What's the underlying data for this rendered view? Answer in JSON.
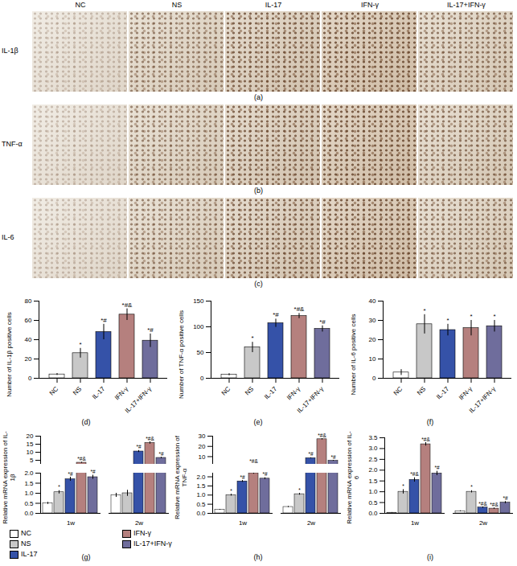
{
  "micrographs": {
    "columns": [
      "NC",
      "NS",
      "IL-17",
      "IFN-γ",
      "IL-17+IFN-γ"
    ],
    "rows": [
      {
        "label": "IL-1β",
        "panel": "(a)"
      },
      {
        "label": "TNF-α",
        "panel": "(b)"
      },
      {
        "label": "IL-6",
        "panel": "(c)"
      }
    ]
  },
  "chart_data": [
    {
      "type": "bar",
      "title": "(d)",
      "y_label": "Number of IL-1β positive cells",
      "categories": [
        "NC",
        "NS",
        "IL-17",
        "IFN-γ",
        "IL-17+IFN-γ"
      ],
      "values": [
        4,
        26,
        48,
        66,
        39
      ],
      "errors": [
        1,
        5,
        8,
        6,
        7
      ],
      "significance": [
        null,
        "*",
        "*#",
        "*#&",
        "*#"
      ],
      "colors": [
        "#ffffff",
        "#c8c8c8",
        "#3552a8",
        "#b5807e",
        "#6f6d9c"
      ],
      "ylim": [
        0,
        80
      ],
      "yticks": [
        0,
        20,
        40,
        60,
        80
      ]
    },
    {
      "type": "bar",
      "title": "(e)",
      "y_label": "Number of TNF-α positive cells",
      "categories": [
        "NC",
        "NS",
        "IL-17",
        "IFN-γ",
        "IL-17+IFN-γ"
      ],
      "values": [
        7,
        60,
        107,
        121,
        96
      ],
      "errors": [
        2,
        10,
        8,
        5,
        6
      ],
      "significance": [
        null,
        "*",
        "*#",
        "*#&",
        "*#"
      ],
      "colors": [
        "#ffffff",
        "#c8c8c8",
        "#3552a8",
        "#b5807e",
        "#6f6d9c"
      ],
      "ylim": [
        0,
        150
      ],
      "yticks": [
        0,
        50,
        100,
        150
      ]
    },
    {
      "type": "bar",
      "title": "(f)",
      "y_label": "Number of IL-6 positive cells",
      "categories": [
        "NC",
        "NS",
        "IL-17",
        "IFN-γ",
        "IL-17+IFN-γ"
      ],
      "values": [
        3,
        28,
        25,
        26,
        27
      ],
      "errors": [
        1.5,
        5,
        3,
        4,
        3
      ],
      "significance": [
        null,
        "*",
        "*",
        "*",
        "*"
      ],
      "colors": [
        "#ffffff",
        "#c8c8c8",
        "#3552a8",
        "#b5807e",
        "#6f6d9c"
      ],
      "ylim": [
        0,
        40
      ],
      "yticks": [
        0,
        10,
        20,
        30,
        40
      ]
    },
    {
      "type": "bar",
      "title": "(g)",
      "y_label": "Relative mRNA expression of IL-1β",
      "categories": [
        "1w",
        "2w"
      ],
      "series": [
        {
          "name": "NC",
          "color": "#ffffff",
          "values": [
            0.5,
            0.9
          ],
          "errors": [
            0.05,
            0.1
          ],
          "significance": [
            null,
            null
          ]
        },
        {
          "name": "NS",
          "color": "#c8c8c8",
          "values": [
            1.05,
            1.0
          ],
          "errors": [
            0.08,
            0.15
          ],
          "significance": [
            "*",
            null
          ]
        },
        {
          "name": "IL-17",
          "color": "#3552a8",
          "values": [
            1.7,
            10.5
          ],
          "errors": [
            0.1,
            0.6
          ],
          "significance": [
            "*#",
            "*#"
          ]
        },
        {
          "name": "IFN-γ",
          "color": "#b5807e",
          "values": [
            3.5,
            15.8
          ],
          "errors": [
            0.3,
            0.7
          ],
          "significance": [
            "*#&",
            "*#&"
          ]
        },
        {
          "name": "IL-17+IFN-γ",
          "color": "#6f6d9c",
          "values": [
            1.8,
            6.5
          ],
          "errors": [
            0.1,
            0.4
          ],
          "significance": [
            "*#",
            "*#"
          ]
        }
      ],
      "ylim": [
        0,
        20
      ],
      "ybreak": [
        2,
        2.5
      ],
      "yticks": [
        {
          "value": 0,
          "label": "0.0"
        },
        0.5,
        {
          "value": 1,
          "label": "1.0"
        },
        1.5,
        {
          "value": 2,
          "label": "2.0"
        },
        5,
        10,
        15,
        20
      ],
      "legend": "bottom"
    },
    {
      "type": "bar",
      "title": "(h)",
      "y_label": "Relative mRNA expression of TNF-α",
      "categories": [
        "1w",
        "2w"
      ],
      "series": [
        {
          "name": "NC",
          "color": "#ffffff",
          "values": [
            0.2,
            0.35
          ],
          "errors": [
            0.02,
            0.03
          ],
          "significance": [
            null,
            null
          ]
        },
        {
          "name": "NS",
          "color": "#c8c8c8",
          "values": [
            1.0,
            1.05
          ],
          "errors": [
            0.05,
            0.05
          ],
          "significance": [
            "*",
            "*"
          ]
        },
        {
          "name": "IL-17",
          "color": "#3552a8",
          "values": [
            1.75,
            8.5
          ],
          "errors": [
            0.05,
            0.4
          ],
          "significance": [
            "*#",
            "*#"
          ]
        },
        {
          "name": "IFN-γ",
          "color": "#b5807e",
          "values": [
            2.2,
            27
          ],
          "errors": [
            0.05,
            0.6
          ],
          "significance": [
            "*#&",
            "*#&"
          ]
        },
        {
          "name": "IL-17+IFN-γ",
          "color": "#6f6d9c",
          "values": [
            1.9,
            6
          ],
          "errors": [
            0.05,
            0.4
          ],
          "significance": [
            "*#",
            "*#"
          ]
        }
      ],
      "ylim": [
        0,
        30
      ],
      "ybreak": [
        2.2,
        2.5
      ],
      "yticks": [
        {
          "value": 0,
          "label": "0.0"
        },
        0.5,
        {
          "value": 1,
          "label": "1.0"
        },
        1.5,
        {
          "value": 2,
          "label": "2.0"
        },
        10,
        20,
        30
      ]
    },
    {
      "type": "bar",
      "title": "(i)",
      "y_label": "Relative mRNA expression of IL-6",
      "categories": [
        "1w",
        "2w"
      ],
      "series": [
        {
          "name": "NC",
          "color": "#ffffff",
          "values": [
            0.03,
            0.1
          ],
          "errors": [
            0.01,
            0.02
          ],
          "significance": [
            null,
            null
          ]
        },
        {
          "name": "NS",
          "color": "#c8c8c8",
          "values": [
            1.0,
            1.0
          ],
          "errors": [
            0.1,
            0.05
          ],
          "significance": [
            "*",
            "*"
          ]
        },
        {
          "name": "IL-17",
          "color": "#3552a8",
          "values": [
            1.55,
            0.27
          ],
          "errors": [
            0.1,
            0.03
          ],
          "significance": [
            "*#&",
            "*#&"
          ]
        },
        {
          "name": "IFN-γ",
          "color": "#b5807e",
          "values": [
            3.2,
            0.22
          ],
          "errors": [
            0.08,
            0.03
          ],
          "significance": [
            "*#&",
            "*#&"
          ]
        },
        {
          "name": "IL-17+IFN-γ",
          "color": "#6f6d9c",
          "values": [
            1.85,
            0.5
          ],
          "errors": [
            0.1,
            0.05
          ],
          "significance": [
            "*#",
            "*#"
          ]
        }
      ],
      "ylim": [
        0,
        3.5
      ],
      "yticks": [
        {
          "value": 0,
          "label": "0.0"
        },
        0.5,
        {
          "value": 1,
          "label": "1.0"
        },
        1.5,
        {
          "value": 2,
          "label": "2.0"
        },
        2.5,
        {
          "value": 3,
          "label": "3.0"
        },
        3.5
      ]
    }
  ]
}
